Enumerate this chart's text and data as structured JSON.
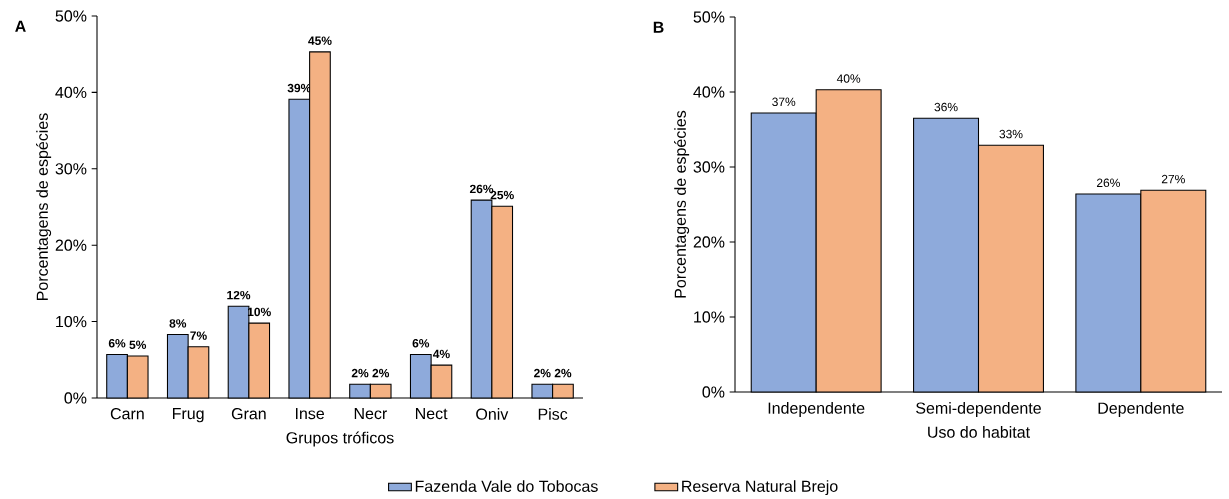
{
  "chart_data": [
    {
      "type": "bar",
      "title": "A",
      "xlabel": "Grupos tróficos",
      "ylabel": "Porcentagens de espécies",
      "categories": [
        "Carn",
        "Frug",
        "Gran",
        "Inse",
        "Necr",
        "Nect",
        "Oniv",
        "Pisc"
      ],
      "series": [
        {
          "name": "Fazenda Vale do Tobocas",
          "color": "#8eaadb",
          "values": [
            5.7,
            8.3,
            12.0,
            39.1,
            1.8,
            5.7,
            25.9,
            1.8
          ],
          "value_labels": [
            "6%",
            "8%",
            "12%",
            "39%",
            "2%",
            "6%",
            "26%",
            "2%"
          ]
        },
        {
          "name": "Reserva Natural Brejo",
          "color": "#f4b183",
          "values": [
            5.5,
            6.7,
            9.8,
            45.3,
            1.8,
            4.3,
            25.1,
            1.8
          ],
          "value_labels": [
            "5%",
            "7%",
            "10%",
            "45%",
            "2%",
            "4%",
            "25%",
            "2%"
          ]
        }
      ],
      "ylim": [
        0,
        50
      ],
      "yticks": [
        {
          "value": 0,
          "label": "0%"
        },
        {
          "value": 10,
          "label": "10%"
        },
        {
          "value": 20,
          "label": "20%"
        },
        {
          "value": 30,
          "label": "30%"
        },
        {
          "value": 40,
          "label": "40%"
        },
        {
          "value": 50,
          "label": "50%"
        }
      ],
      "grid": false,
      "legend": "bottom"
    },
    {
      "type": "bar",
      "title": "B",
      "xlabel": "Uso do habitat",
      "ylabel": "Porcentagens de espécies",
      "categories": [
        "Independente",
        "Semi-dependente",
        "Dependente"
      ],
      "series": [
        {
          "color": "#8eaadb",
          "values": [
            37.2,
            36.5,
            26.4
          ],
          "value_labels": [
            "37%",
            "36%",
            "26%"
          ]
        },
        {
          "color": "#f4b183",
          "values": [
            40.3,
            32.9,
            26.9
          ],
          "value_labels": [
            "40%",
            "33%",
            "27%"
          ]
        }
      ],
      "ylim": [
        0,
        50
      ],
      "yticks": [
        {
          "value": 0,
          "label": "0%"
        },
        {
          "value": 10,
          "label": "10%"
        },
        {
          "value": 20,
          "label": "20%"
        },
        {
          "value": 30,
          "label": "30%"
        },
        {
          "value": 40,
          "label": "40%"
        },
        {
          "value": 50,
          "label": "50%"
        }
      ],
      "grid": false
    }
  ]
}
